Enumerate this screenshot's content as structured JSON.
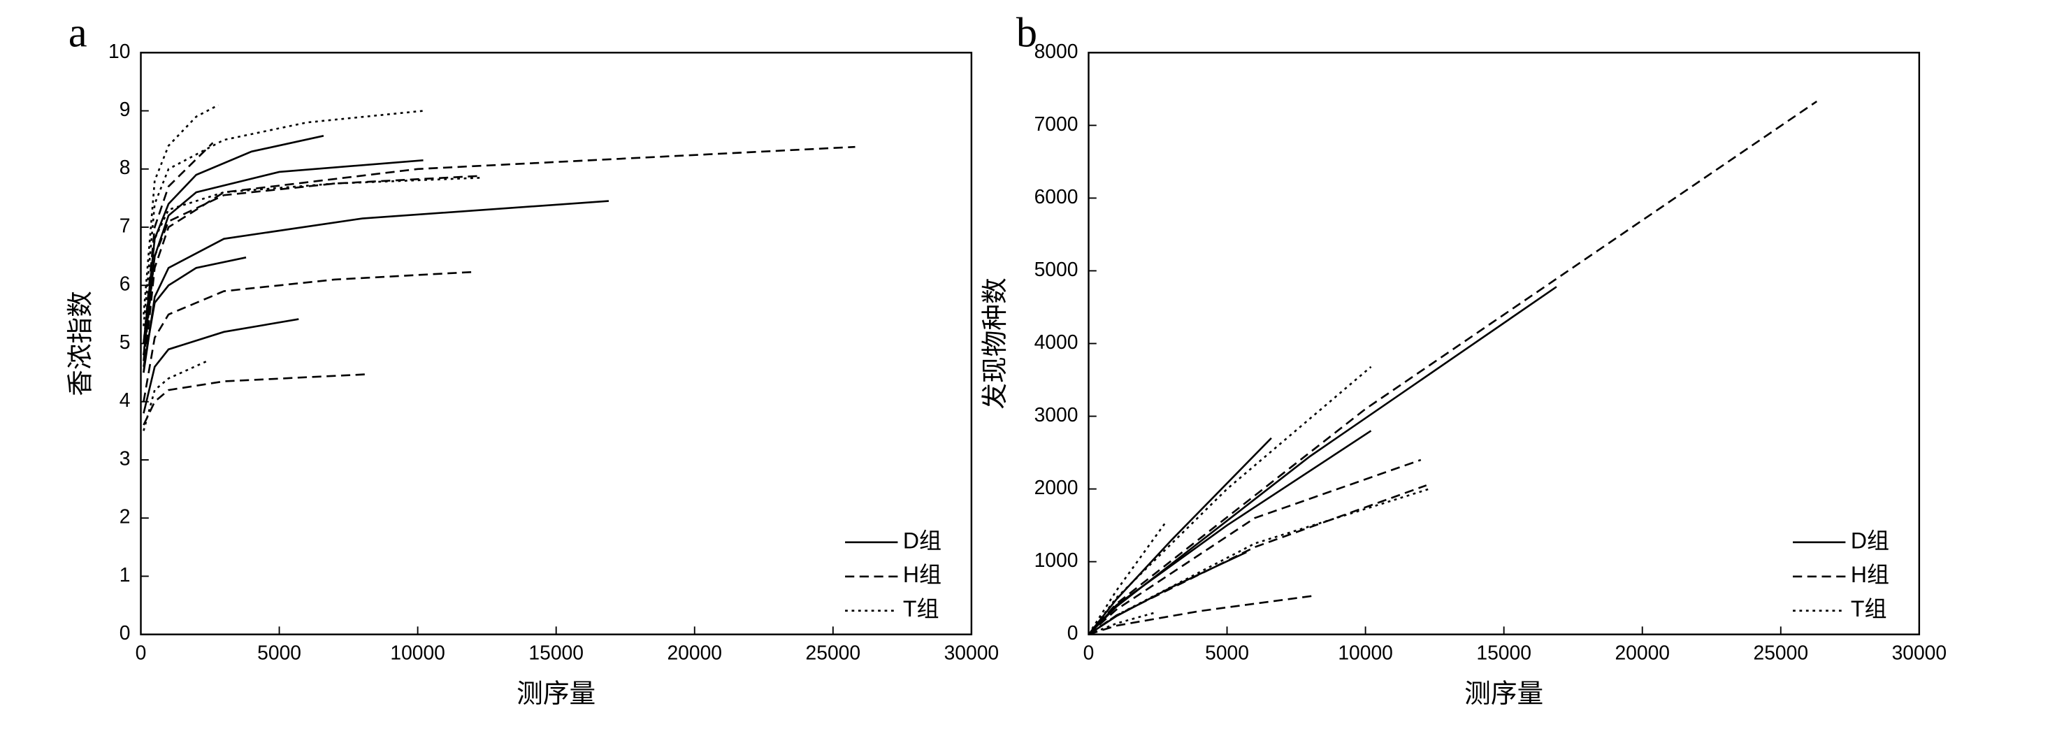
{
  "chart_data": [
    {
      "type": "line",
      "panel_label": "a",
      "x_label": "测序量",
      "y_label": "香浓指数",
      "xlim": [
        0,
        30000
      ],
      "ylim": [
        0,
        10
      ],
      "xticks": [
        0,
        5000,
        10000,
        15000,
        20000,
        25000,
        30000
      ],
      "yticks": [
        0,
        1,
        2,
        3,
        4,
        5,
        6,
        7,
        8,
        9,
        10
      ],
      "legend": "lower right",
      "series": [
        {
          "name": "D组",
          "color": "#000000",
          "line_style": "solid",
          "curves": [
            {
              "x": [
                100,
                500,
                1000,
                2000,
                4000,
                6600
              ],
              "values": [
                5.0,
                6.8,
                7.4,
                7.9,
                8.3,
                8.57
              ]
            },
            {
              "x": [
                100,
                500,
                1000,
                2000,
                5000,
                10200
              ],
              "values": [
                4.8,
                6.5,
                7.2,
                7.6,
                7.95,
                8.15
              ]
            },
            {
              "x": [
                100,
                500,
                1000,
                3000,
                8000,
                16900
              ],
              "values": [
                4.5,
                5.8,
                6.3,
                6.8,
                7.15,
                7.45
              ]
            },
            {
              "x": [
                100,
                500,
                1000,
                2000,
                3800
              ],
              "values": [
                4.6,
                5.7,
                6.0,
                6.3,
                6.48
              ]
            },
            {
              "x": [
                100,
                500,
                1000,
                3000,
                5700
              ],
              "values": [
                3.8,
                4.6,
                4.9,
                5.2,
                5.42
              ]
            }
          ]
        },
        {
          "name": "H组",
          "color": "#000000",
          "line_style": "dashed",
          "curves": [
            {
              "x": [
                100,
                500,
                1000,
                3000,
                10000,
                25800
              ],
              "values": [
                4.5,
                6.3,
                7.0,
                7.6,
                8.0,
                8.38
              ]
            },
            {
              "x": [
                100,
                500,
                1000,
                3000,
                7000,
                12200
              ],
              "values": [
                4.7,
                6.5,
                7.1,
                7.55,
                7.75,
                7.88
              ]
            },
            {
              "x": [
                100,
                500,
                1000,
                3000,
                7000,
                12000
              ],
              "values": [
                4.0,
                5.1,
                5.5,
                5.9,
                6.1,
                6.23
              ]
            },
            {
              "x": [
                100,
                500,
                1000,
                3000,
                8100
              ],
              "values": [
                3.6,
                4.0,
                4.2,
                4.35,
                4.47
              ]
            },
            {
              "x": [
                100,
                500,
                1000,
                2600
              ],
              "values": [
                5.0,
                7.0,
                7.7,
                8.45
              ]
            }
          ]
        },
        {
          "name": "T组",
          "color": "#000000",
          "line_style": "dotted",
          "curves": [
            {
              "x": [
                100,
                500,
                1000,
                2000,
                2800
              ],
              "values": [
                5.5,
                7.8,
                8.4,
                8.9,
                9.1
              ]
            },
            {
              "x": [
                100,
                500,
                1000,
                3000,
                6000,
                10200
              ],
              "values": [
                5.3,
                7.4,
                8.0,
                8.5,
                8.8,
                9.0
              ]
            },
            {
              "x": [
                100,
                500,
                1000,
                3000,
                7000,
                12300
              ],
              "values": [
                4.8,
                6.8,
                7.3,
                7.6,
                7.75,
                7.85
              ]
            },
            {
              "x": [
                100,
                500,
                1000,
                2400
              ],
              "values": [
                3.5,
                4.2,
                4.4,
                4.7
              ]
            }
          ]
        }
      ]
    },
    {
      "type": "line",
      "panel_label": "b",
      "x_label": "测序量",
      "y_label": "发现物种数",
      "xlim": [
        0,
        30000
      ],
      "ylim": [
        0,
        8000
      ],
      "xticks": [
        0,
        5000,
        10000,
        15000,
        20000,
        25000,
        30000
      ],
      "yticks": [
        0,
        1000,
        2000,
        3000,
        4000,
        5000,
        6000,
        7000,
        8000
      ],
      "legend": "lower right",
      "series": [
        {
          "name": "D组",
          "color": "#000000",
          "line_style": "solid",
          "curves": [
            {
              "x": [
                0,
                1000,
                8000,
                16900
              ],
              "values": [
                0,
                380,
                2450,
                4780
              ]
            },
            {
              "x": [
                0,
                1000,
                5000,
                10200
              ],
              "values": [
                0,
                400,
                1500,
                2800
              ]
            },
            {
              "x": [
                0,
                1000,
                3000,
                6600
              ],
              "values": [
                0,
                480,
                1300,
                2700
              ]
            },
            {
              "x": [
                0,
                1000,
                3000,
                5700
              ],
              "values": [
                0,
                250,
                650,
                1130
              ]
            }
          ]
        },
        {
          "name": "H组",
          "color": "#000000",
          "line_style": "dashed",
          "curves": [
            {
              "x": [
                0,
                1000,
                10000,
                26300
              ],
              "values": [
                0,
                420,
                3100,
                7330
              ]
            },
            {
              "x": [
                0,
                1000,
                6000,
                12000
              ],
              "values": [
                0,
                340,
                1600,
                2400
              ]
            },
            {
              "x": [
                0,
                1000,
                6000,
                12200
              ],
              "values": [
                0,
                260,
                1200,
                2050
              ]
            },
            {
              "x": [
                0,
                1000,
                4000,
                8100
              ],
              "values": [
                0,
                120,
                320,
                530
              ]
            }
          ]
        },
        {
          "name": "T组",
          "color": "#000000",
          "line_style": "dotted",
          "curves": [
            {
              "x": [
                0,
                1000,
                5000,
                10200
              ],
              "values": [
                0,
                500,
                2000,
                3680
              ]
            },
            {
              "x": [
                0,
                1000,
                6000,
                12300
              ],
              "values": [
                0,
                260,
                1250,
                2000
              ]
            },
            {
              "x": [
                0,
                1000,
                2800
              ],
              "values": [
                0,
                600,
                1550
              ]
            },
            {
              "x": [
                0,
                1000,
                2400
              ],
              "values": [
                0,
                150,
                300
              ]
            }
          ]
        }
      ]
    }
  ]
}
